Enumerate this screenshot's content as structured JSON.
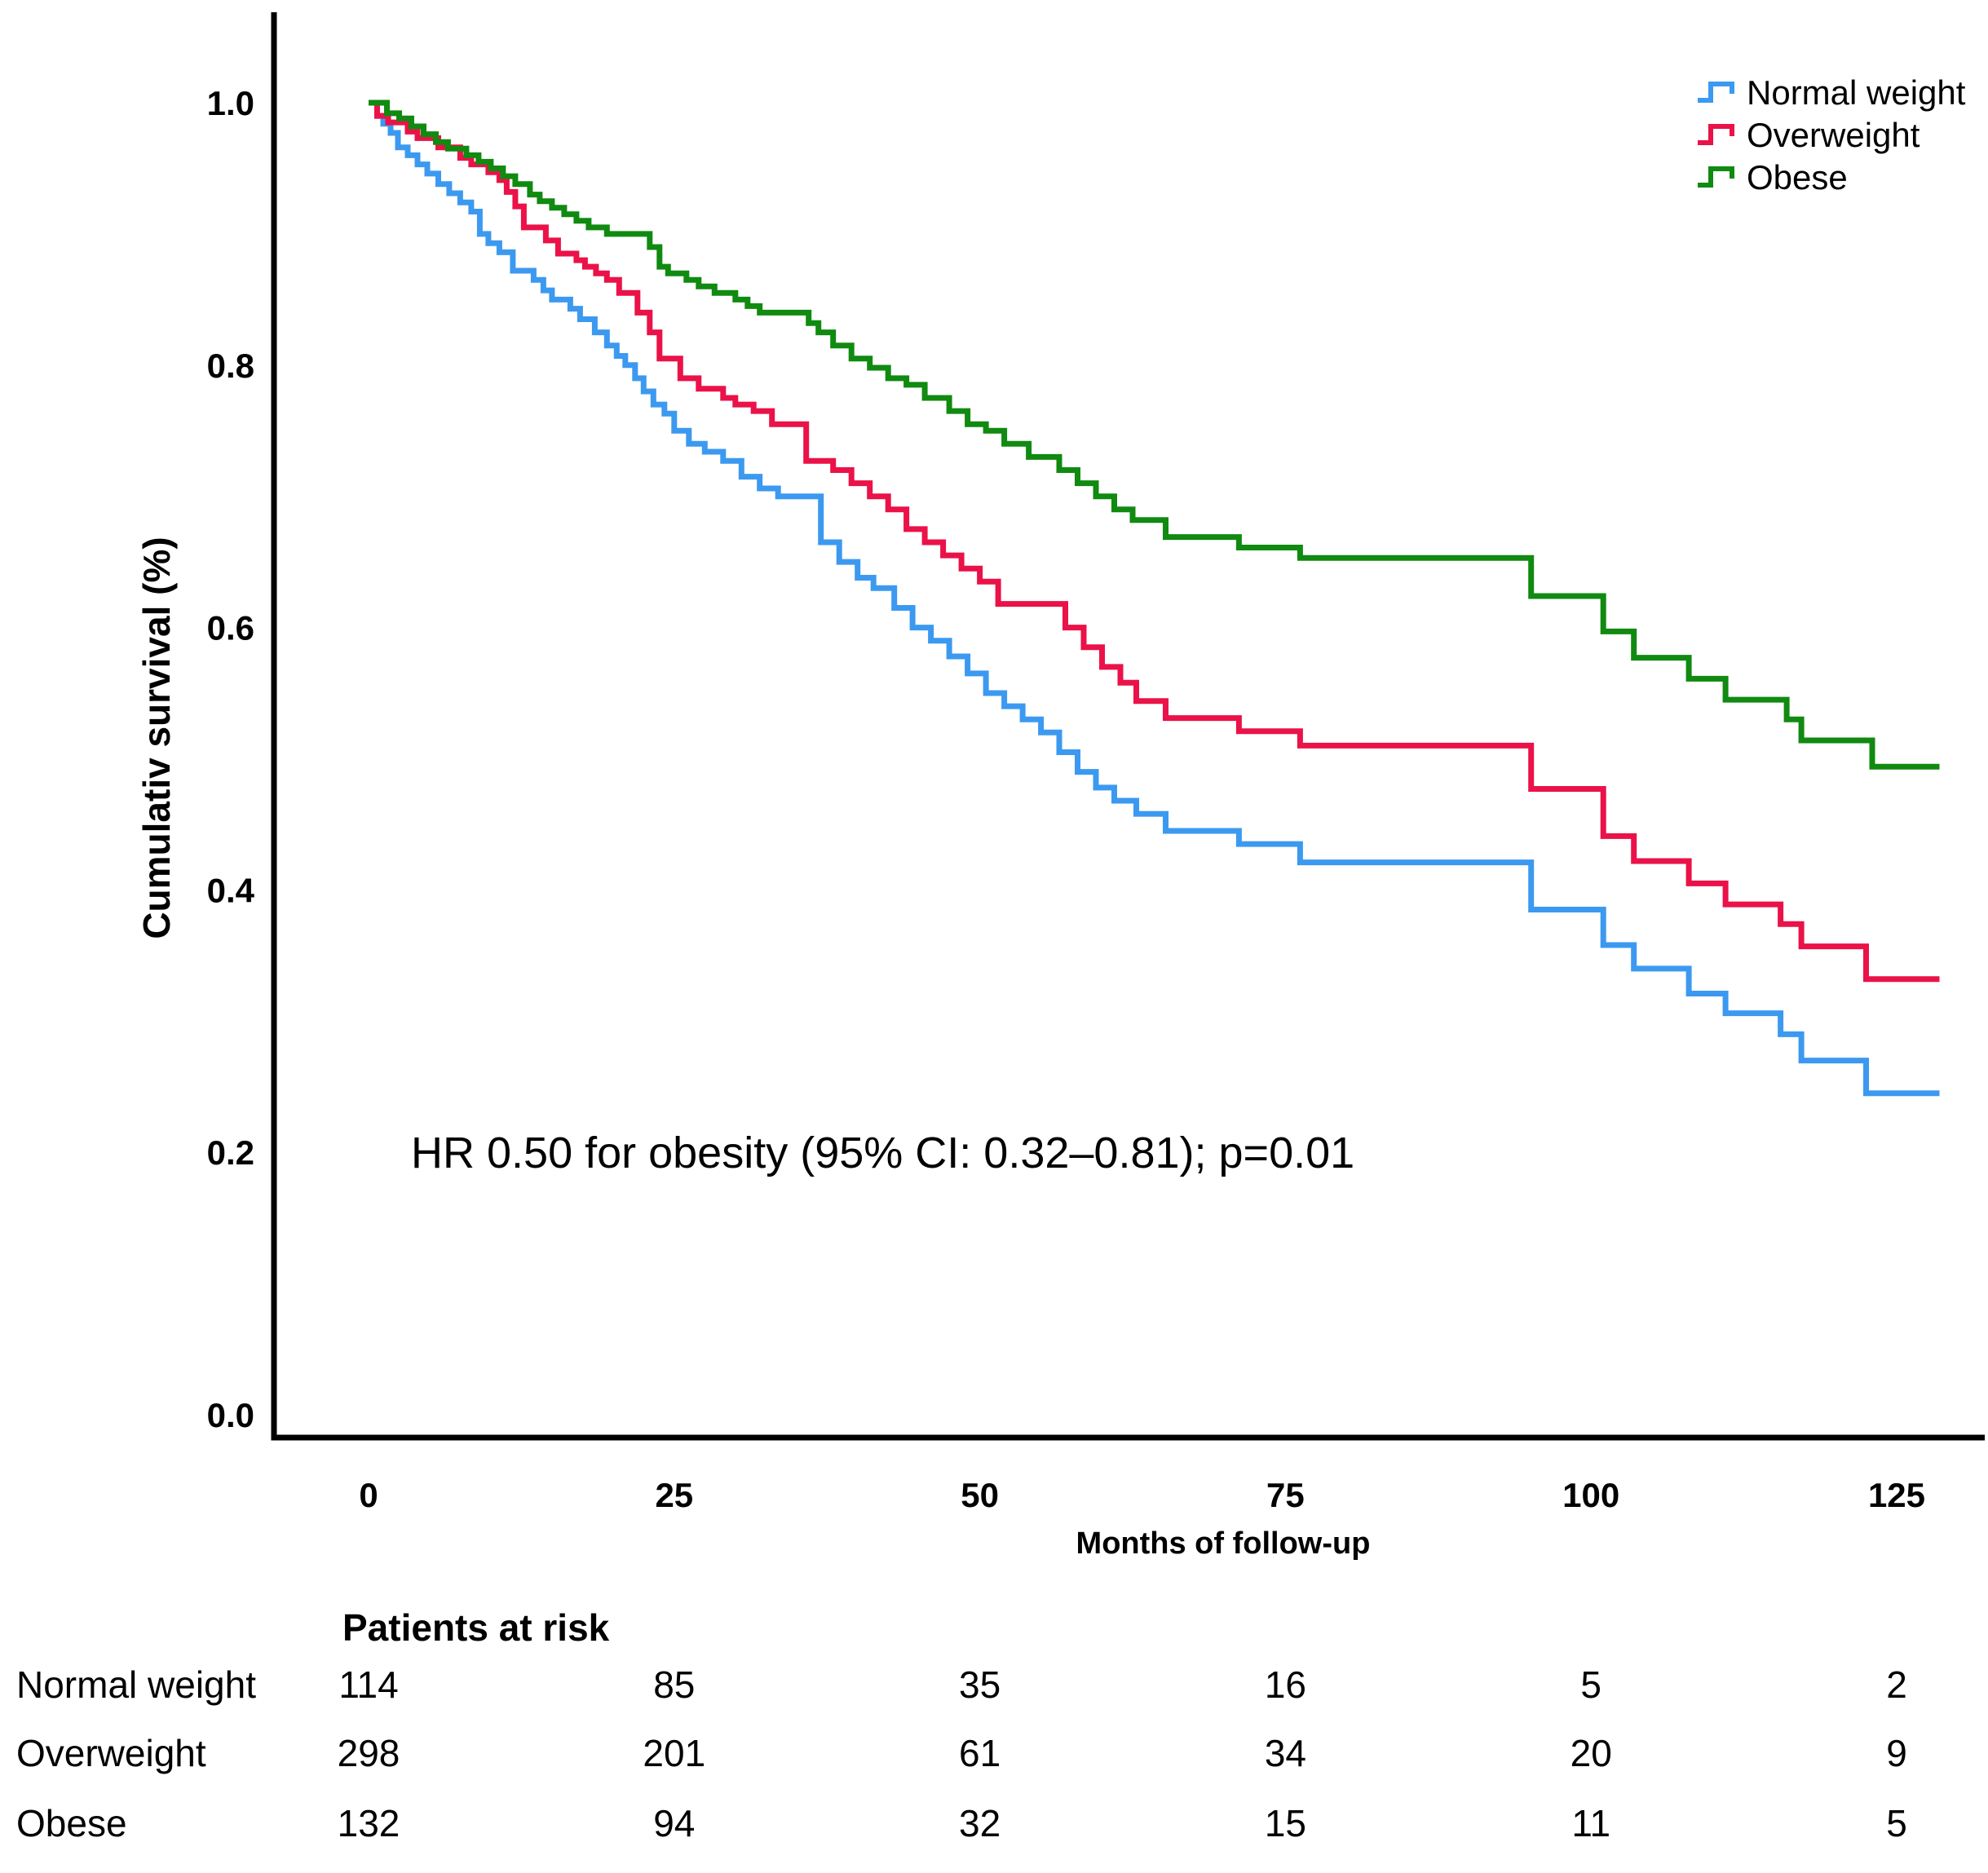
{
  "figure": {
    "background": "#ffffff",
    "text_color": "#000000",
    "axis_color": "#000000"
  },
  "chart_data": {
    "type": "line",
    "subtype": "kaplan-meier-step-survival",
    "title": "",
    "xlabel": "Months of follow-up",
    "ylabel": "Cumulativ survival (%)",
    "annotation": "HR 0.50 for obesity (95% CI: 0.32–0.81); p=0.01",
    "xlim": [
      0,
      130
    ],
    "ylim": [
      0.0,
      1.0
    ],
    "x_ticks": [
      0,
      25,
      50,
      75,
      100,
      125
    ],
    "y_ticks": [
      1.0,
      0.8,
      0.6,
      0.4,
      0.2,
      0.0
    ],
    "grid": false,
    "legend_position": "top-right",
    "end_time": 128.5,
    "series": [
      {
        "name": "Normal weight",
        "color": "#3C99F0",
        "steps": [
          [
            0,
            1.0
          ],
          [
            0.7,
            0.99
          ],
          [
            1.2,
            0.984
          ],
          [
            1.8,
            0.977
          ],
          [
            2.4,
            0.966
          ],
          [
            3.2,
            0.96
          ],
          [
            4,
            0.953
          ],
          [
            4.8,
            0.946
          ],
          [
            5.7,
            0.938
          ],
          [
            6.6,
            0.931
          ],
          [
            7.5,
            0.924
          ],
          [
            8.4,
            0.917
          ],
          [
            9.1,
            0.9
          ],
          [
            9.8,
            0.893
          ],
          [
            10.7,
            0.886
          ],
          [
            11.8,
            0.872
          ],
          [
            13.5,
            0.865
          ],
          [
            14.3,
            0.857
          ],
          [
            15,
            0.85
          ],
          [
            16.5,
            0.843
          ],
          [
            17.3,
            0.835
          ],
          [
            18.5,
            0.825
          ],
          [
            19.5,
            0.815
          ],
          [
            20.3,
            0.807
          ],
          [
            21,
            0.8
          ],
          [
            21.8,
            0.79
          ],
          [
            22.5,
            0.78
          ],
          [
            23.3,
            0.77
          ],
          [
            24.2,
            0.763
          ],
          [
            25,
            0.75
          ],
          [
            26.2,
            0.74
          ],
          [
            27.5,
            0.734
          ],
          [
            29,
            0.727
          ],
          [
            30.5,
            0.715
          ],
          [
            32,
            0.706
          ],
          [
            33.5,
            0.7
          ],
          [
            37,
            0.665
          ],
          [
            38.5,
            0.65
          ],
          [
            40,
            0.638
          ],
          [
            41.3,
            0.63
          ],
          [
            43,
            0.615
          ],
          [
            44.5,
            0.6
          ],
          [
            46,
            0.59
          ],
          [
            47.5,
            0.578
          ],
          [
            49,
            0.565
          ],
          [
            50.5,
            0.55
          ],
          [
            52,
            0.54
          ],
          [
            53.5,
            0.53
          ],
          [
            55,
            0.52
          ],
          [
            56.5,
            0.505
          ],
          [
            58,
            0.49
          ],
          [
            59.5,
            0.478
          ],
          [
            61,
            0.468
          ],
          [
            62.8,
            0.458
          ],
          [
            65.2,
            0.445
          ],
          [
            71.2,
            0.435
          ],
          [
            76.2,
            0.421
          ],
          [
            95.1,
            0.385
          ],
          [
            101,
            0.358
          ],
          [
            103.5,
            0.34
          ],
          [
            108,
            0.321
          ],
          [
            111,
            0.306
          ],
          [
            115.5,
            0.29
          ],
          [
            117.2,
            0.27
          ],
          [
            122.5,
            0.245
          ]
        ]
      },
      {
        "name": "Overweight",
        "color": "#EA1248",
        "steps": [
          [
            0,
            1.0
          ],
          [
            0.7,
            0.99
          ],
          [
            1.6,
            0.985
          ],
          [
            3.2,
            0.978
          ],
          [
            4,
            0.973
          ],
          [
            5.7,
            0.966
          ],
          [
            7.5,
            0.958
          ],
          [
            8.4,
            0.953
          ],
          [
            9.8,
            0.947
          ],
          [
            10.7,
            0.941
          ],
          [
            11.3,
            0.932
          ],
          [
            12,
            0.921
          ],
          [
            12.7,
            0.905
          ],
          [
            14.5,
            0.895
          ],
          [
            15.5,
            0.885
          ],
          [
            17,
            0.88
          ],
          [
            17.7,
            0.875
          ],
          [
            18.6,
            0.87
          ],
          [
            19.5,
            0.865
          ],
          [
            20.5,
            0.855
          ],
          [
            22,
            0.84
          ],
          [
            23,
            0.825
          ],
          [
            23.8,
            0.805
          ],
          [
            25.5,
            0.79
          ],
          [
            27,
            0.782
          ],
          [
            29,
            0.775
          ],
          [
            30,
            0.77
          ],
          [
            31.5,
            0.765
          ],
          [
            33,
            0.755
          ],
          [
            35.8,
            0.727
          ],
          [
            38,
            0.72
          ],
          [
            39.5,
            0.71
          ],
          [
            41,
            0.7
          ],
          [
            42.5,
            0.69
          ],
          [
            44,
            0.675
          ],
          [
            45.5,
            0.665
          ],
          [
            47,
            0.655
          ],
          [
            48.5,
            0.645
          ],
          [
            50,
            0.635
          ],
          [
            51.5,
            0.618
          ],
          [
            57,
            0.6
          ],
          [
            58.5,
            0.585
          ],
          [
            60,
            0.57
          ],
          [
            61.5,
            0.558
          ],
          [
            62.8,
            0.544
          ],
          [
            65.2,
            0.531
          ],
          [
            71.2,
            0.521
          ],
          [
            76.2,
            0.51
          ],
          [
            95.1,
            0.477
          ],
          [
            101,
            0.441
          ],
          [
            103.5,
            0.422
          ],
          [
            108,
            0.405
          ],
          [
            111,
            0.389
          ],
          [
            115.5,
            0.374
          ],
          [
            117.2,
            0.357
          ],
          [
            122.5,
            0.332
          ]
        ]
      },
      {
        "name": "Obese",
        "color": "#108A10",
        "steps": [
          [
            0,
            1.0
          ],
          [
            1.5,
            0.992
          ],
          [
            2.5,
            0.988
          ],
          [
            3.5,
            0.982
          ],
          [
            4.5,
            0.976
          ],
          [
            5.5,
            0.97
          ],
          [
            6.5,
            0.965
          ],
          [
            8,
            0.96
          ],
          [
            9,
            0.955
          ],
          [
            10,
            0.95
          ],
          [
            11,
            0.944
          ],
          [
            12,
            0.938
          ],
          [
            13.2,
            0.93
          ],
          [
            14,
            0.925
          ],
          [
            15,
            0.92
          ],
          [
            16,
            0.915
          ],
          [
            17,
            0.91
          ],
          [
            18,
            0.905
          ],
          [
            19.5,
            0.9
          ],
          [
            23,
            0.89
          ],
          [
            23.8,
            0.875
          ],
          [
            24.5,
            0.87
          ],
          [
            26,
            0.865
          ],
          [
            27,
            0.86
          ],
          [
            28.3,
            0.855
          ],
          [
            30,
            0.85
          ],
          [
            31,
            0.845
          ],
          [
            32,
            0.84
          ],
          [
            36,
            0.832
          ],
          [
            36.8,
            0.825
          ],
          [
            38,
            0.815
          ],
          [
            39.5,
            0.805
          ],
          [
            41,
            0.798
          ],
          [
            42.5,
            0.79
          ],
          [
            44,
            0.785
          ],
          [
            45.5,
            0.775
          ],
          [
            47.5,
            0.765
          ],
          [
            49,
            0.755
          ],
          [
            50.5,
            0.75
          ],
          [
            52,
            0.74
          ],
          [
            54,
            0.73
          ],
          [
            56.5,
            0.72
          ],
          [
            58,
            0.71
          ],
          [
            59.5,
            0.7
          ],
          [
            61,
            0.69
          ],
          [
            62.5,
            0.682
          ],
          [
            65.2,
            0.669
          ],
          [
            71.2,
            0.661
          ],
          [
            76.2,
            0.653
          ],
          [
            95.1,
            0.624
          ],
          [
            101,
            0.597
          ],
          [
            103.5,
            0.577
          ],
          [
            108,
            0.561
          ],
          [
            111,
            0.545
          ],
          [
            116,
            0.53
          ],
          [
            117.2,
            0.514
          ],
          [
            123,
            0.494
          ]
        ]
      }
    ]
  },
  "legend": [
    {
      "label": "Normal weight",
      "color": "#3C99F0"
    },
    {
      "label": "Overweight",
      "color": "#EA1248"
    },
    {
      "label": "Obese",
      "color": "#108A10"
    }
  ],
  "risk_table": {
    "title": "Patients at risk",
    "time_points": [
      0,
      25,
      50,
      75,
      100,
      125
    ],
    "rows": [
      {
        "label": "Normal weight",
        "values": [
          114,
          85,
          35,
          16,
          5,
          2
        ]
      },
      {
        "label": "Overweight",
        "values": [
          298,
          201,
          61,
          34,
          20,
          9
        ]
      },
      {
        "label": "Obese",
        "values": [
          132,
          94,
          32,
          15,
          11,
          5
        ]
      }
    ]
  }
}
